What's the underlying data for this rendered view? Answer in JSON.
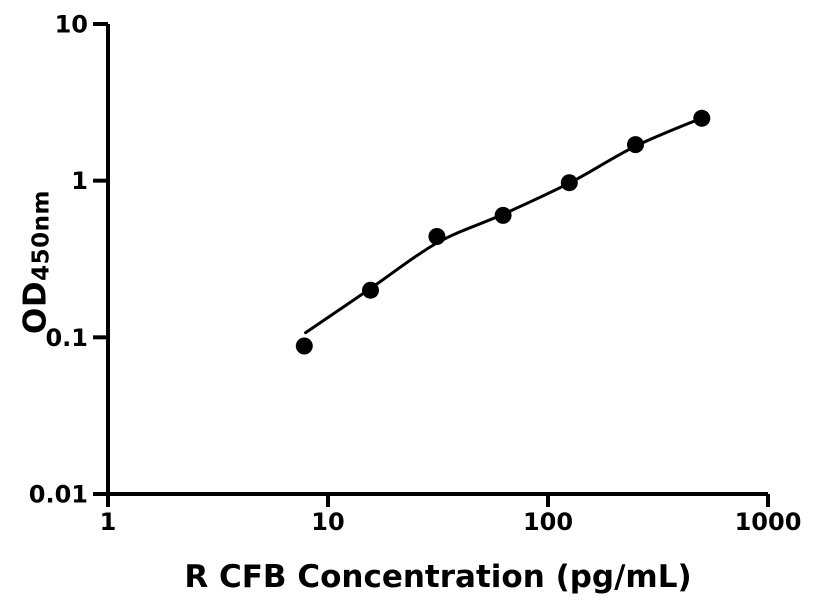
{
  "figure": {
    "background": "#ffffff",
    "foreground": "#000000"
  },
  "chart_data": {
    "type": "scatter",
    "title": "",
    "xlabel": "R CFB Concentration (pg/mL)",
    "ylabel_main": "OD",
    "ylabel_sub": "450nm",
    "x_scale": "log",
    "y_scale": "log",
    "xlim": [
      1,
      1000
    ],
    "ylim": [
      0.01,
      10
    ],
    "grid": false,
    "legend": "none",
    "x_ticks": [
      {
        "value": 1,
        "label": "1"
      },
      {
        "value": 10,
        "label": "10"
      },
      {
        "value": 100,
        "label": "100"
      },
      {
        "value": 1000,
        "label": "1000"
      }
    ],
    "y_ticks": [
      {
        "value": 0.01,
        "label": "0.01"
      },
      {
        "value": 0.1,
        "label": "0.1"
      },
      {
        "value": 1,
        "label": "1"
      },
      {
        "value": 10,
        "label": "10"
      }
    ],
    "points": [
      {
        "x": 7.8,
        "y": 0.088
      },
      {
        "x": 15.6,
        "y": 0.2
      },
      {
        "x": 31.25,
        "y": 0.44
      },
      {
        "x": 62.5,
        "y": 0.6
      },
      {
        "x": 125,
        "y": 0.97
      },
      {
        "x": 250,
        "y": 1.7
      },
      {
        "x": 500,
        "y": 2.5
      }
    ],
    "fit_curve": [
      {
        "x": 7.9,
        "y": 0.107
      },
      {
        "x": 15.6,
        "y": 0.205
      },
      {
        "x": 31.25,
        "y": 0.4
      },
      {
        "x": 62.5,
        "y": 0.61
      },
      {
        "x": 125,
        "y": 0.965
      },
      {
        "x": 250,
        "y": 1.66
      },
      {
        "x": 500,
        "y": 2.51
      }
    ],
    "marker_color": "#000000",
    "line_color": "#000000",
    "axis_color": "#000000"
  }
}
